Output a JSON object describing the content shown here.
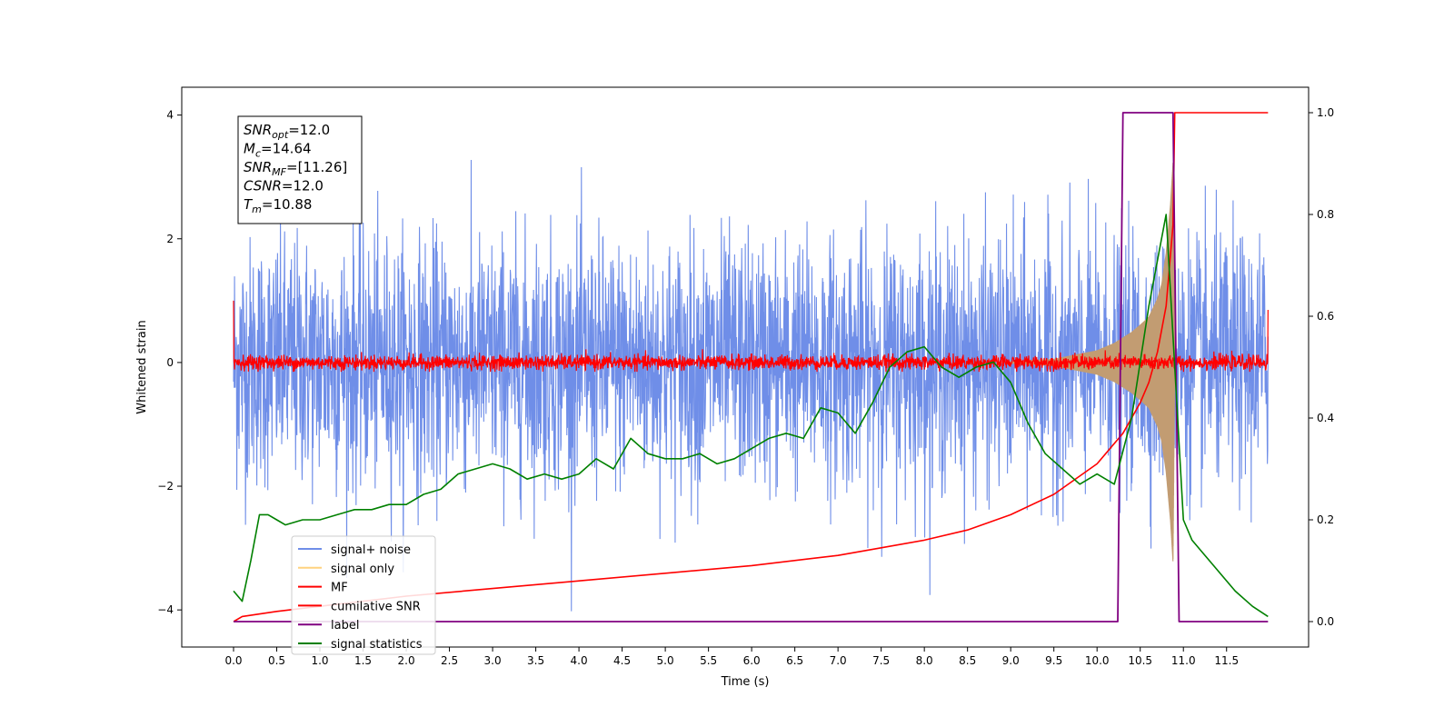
{
  "chart_data": {
    "type": "line",
    "title": "",
    "xlabel": "Time (s)",
    "ylabel": "Whitened strain",
    "ylabel_right": "",
    "xlim": [
      -0.6,
      12.45
    ],
    "ylim_left": [
      -4.6,
      4.45
    ],
    "ylim_right": [
      -0.05,
      1.05
    ],
    "xticks": [
      0.0,
      0.5,
      1.0,
      1.5,
      2.0,
      2.5,
      3.0,
      3.5,
      4.0,
      4.5,
      5.0,
      5.5,
      6.0,
      6.5,
      7.0,
      7.5,
      8.0,
      8.5,
      9.0,
      9.5,
      10.0,
      10.5,
      11.0,
      11.5
    ],
    "xtick_labels": [
      "0.0",
      "0.5",
      "1.0",
      "1.5",
      "2.0",
      "2.5",
      "3.0",
      "3.5",
      "4.0",
      "4.5",
      "5.0",
      "5.5",
      "6.0",
      "6.5",
      "7.0",
      "7.5",
      "8.0",
      "8.5",
      "9.0",
      "9.5",
      "10.0",
      "10.5",
      "11.0",
      "11.5"
    ],
    "yticks_left": [
      -4,
      -2,
      0,
      2,
      4
    ],
    "yticks_left_labels": [
      "−4",
      "−2",
      "0",
      "2",
      "4"
    ],
    "yticks_right": [
      0.0,
      0.2,
      0.4,
      0.6,
      0.8,
      1.0
    ],
    "yticks_right_labels": [
      "0.0",
      "0.2",
      "0.4",
      "0.6",
      "0.8",
      "1.0"
    ],
    "grid": false,
    "legend_position": "lower-left",
    "annotation_box": {
      "position": "top-left",
      "lines": [
        {
          "base": "SNR",
          "sub": "opt",
          "rest": "=12.0"
        },
        {
          "base": "M",
          "sub": "c",
          "rest": "=14.64"
        },
        {
          "base": "SNR",
          "sub": "MF",
          "rest": "=[11.26]"
        },
        {
          "base": "CSNR",
          "sub": "",
          "rest": "=12.0"
        },
        {
          "base": "T",
          "sub": "m",
          "rest": "=10.88"
        }
      ]
    },
    "series": [
      {
        "name": "signal+ noise",
        "color": "#6f8ee8",
        "axis": "left",
        "kind": "noise",
        "x_range": [
          0.0,
          11.98
        ],
        "typical_amplitude": 1.0,
        "extreme_range": [
          -4.15,
          4.05
        ]
      },
      {
        "name": "signal only",
        "color": "#ffd27f",
        "visible_color": "#c29c72",
        "axis": "left",
        "kind": "chirp-envelope",
        "envelope": {
          "x": [
            9.0,
            9.5,
            10.0,
            10.2,
            10.4,
            10.5,
            10.6,
            10.7,
            10.75,
            10.8,
            10.85,
            10.88
          ],
          "y": [
            0.02,
            0.06,
            0.2,
            0.32,
            0.5,
            0.62,
            0.75,
            1.05,
            1.3,
            1.8,
            2.6,
            3.3
          ]
        },
        "ringdown_end": 10.9
      },
      {
        "name": "MF",
        "color": "#ff0000",
        "axis": "left",
        "kind": "noise",
        "x_range": [
          0.0,
          11.98
        ],
        "typical_amplitude": 0.12,
        "start_value": 1.0,
        "end_value": 0.85
      },
      {
        "name": "cumilative SNR",
        "color": "#ff0000",
        "axis": "right",
        "kind": "line",
        "x": [
          0.0,
          0.1,
          0.5,
          1.0,
          2.0,
          3.0,
          4.0,
          5.0,
          6.0,
          7.0,
          7.5,
          8.0,
          8.5,
          9.0,
          9.5,
          10.0,
          10.3,
          10.5,
          10.6,
          10.7,
          10.8,
          10.88,
          10.9,
          11.98
        ],
        "y": [
          0.0,
          0.01,
          0.02,
          0.03,
          0.05,
          0.065,
          0.08,
          0.095,
          0.11,
          0.13,
          0.145,
          0.16,
          0.18,
          0.21,
          0.25,
          0.31,
          0.37,
          0.43,
          0.47,
          0.53,
          0.62,
          0.78,
          1.0,
          1.0
        ]
      },
      {
        "name": "label",
        "color": "#800080",
        "axis": "right",
        "kind": "line",
        "x": [
          0.0,
          10.24,
          10.3,
          10.88,
          10.95,
          11.98
        ],
        "y": [
          0.0,
          0.0,
          1.0,
          1.0,
          0.0,
          0.0
        ]
      },
      {
        "name": "signal statistics",
        "color": "#008000",
        "axis": "right",
        "kind": "line",
        "x": [
          0.0,
          0.1,
          0.2,
          0.3,
          0.4,
          0.5,
          0.6,
          0.8,
          1.0,
          1.2,
          1.4,
          1.6,
          1.8,
          2.0,
          2.2,
          2.4,
          2.6,
          2.8,
          3.0,
          3.2,
          3.4,
          3.6,
          3.8,
          4.0,
          4.2,
          4.4,
          4.6,
          4.8,
          5.0,
          5.2,
          5.4,
          5.6,
          5.8,
          6.0,
          6.2,
          6.4,
          6.6,
          6.8,
          7.0,
          7.2,
          7.4,
          7.6,
          7.8,
          8.0,
          8.2,
          8.4,
          8.6,
          8.8,
          9.0,
          9.2,
          9.4,
          9.6,
          9.8,
          10.0,
          10.2,
          10.4,
          10.6,
          10.8,
          10.9,
          11.0,
          11.1,
          11.2,
          11.4,
          11.6,
          11.8,
          11.98
        ],
        "y": [
          0.06,
          0.04,
          0.12,
          0.21,
          0.21,
          0.2,
          0.19,
          0.2,
          0.2,
          0.21,
          0.22,
          0.22,
          0.23,
          0.23,
          0.25,
          0.26,
          0.29,
          0.3,
          0.31,
          0.3,
          0.28,
          0.29,
          0.28,
          0.29,
          0.32,
          0.3,
          0.36,
          0.33,
          0.32,
          0.32,
          0.33,
          0.31,
          0.32,
          0.34,
          0.36,
          0.37,
          0.36,
          0.42,
          0.41,
          0.37,
          0.43,
          0.5,
          0.53,
          0.54,
          0.5,
          0.48,
          0.5,
          0.51,
          0.47,
          0.39,
          0.33,
          0.3,
          0.27,
          0.29,
          0.27,
          0.4,
          0.62,
          0.8,
          0.5,
          0.2,
          0.16,
          0.14,
          0.1,
          0.06,
          0.03,
          0.01
        ]
      }
    ]
  }
}
